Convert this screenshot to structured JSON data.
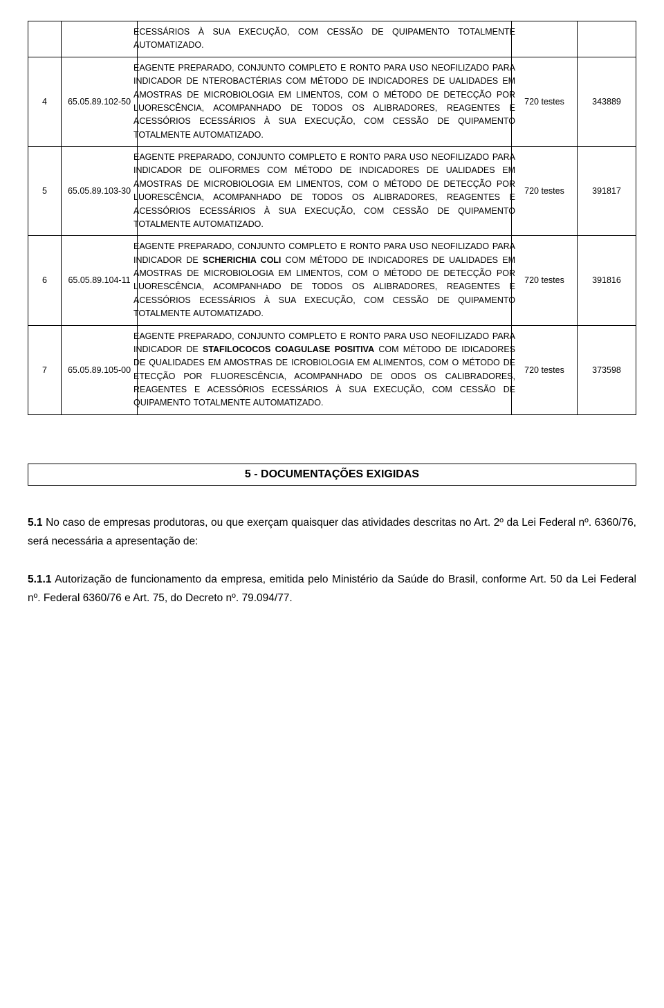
{
  "table": {
    "col4_label": "720 testes",
    "partial_row": {
      "desc": "ECESSÁRIOS À SUA EXECUÇÃO, COM CESSÃO DE QUIPAMENTO TOTALMENTE AUTOMATIZADO."
    },
    "rows": [
      {
        "num": "4",
        "code": "65.05.89.102-50",
        "desc": "EAGENTE PREPARADO, CONJUNTO COMPLETO E RONTO PARA USO NEOFILIZADO PARA INDICADOR DE NTEROBACTÉRIAS COM MÉTODO DE INDICADORES DE UALIDADES EM AMOSTRAS DE MICROBIOLOGIA EM LIMENTOS, COM O MÉTODO DE DETECÇÃO POR LUORESCÊNCIA, ACOMPANHADO DE TODOS OS ALIBRADORES, REAGENTES E ACESSÓRIOS ECESSÁRIOS À SUA EXECUÇÃO, COM CESSÃO DE QUIPAMENTO TOTALMENTE AUTOMATIZADO.",
        "qty": "720 testes",
        "val": "343889"
      },
      {
        "num": "5",
        "code": "65.05.89.103-30",
        "desc": "EAGENTE PREPARADO, CONJUNTO COMPLETO E RONTO PARA USO NEOFILIZADO PARA INDICADOR DE OLIFORMES COM MÉTODO DE INDICADORES DE UALIDADES EM AMOSTRAS DE MICROBIOLOGIA EM LIMENTOS, COM O MÉTODO DE DETECÇÃO POR LUORESCÊNCIA, ACOMPANHADO DE TODOS OS ALIBRADORES, REAGENTES E ACESSÓRIOS ECESSÁRIOS À SUA EXECUÇÃO, COM CESSÃO DE QUIPAMENTO TOTALMENTE AUTOMATIZADO.",
        "qty": "720 testes",
        "val": "391817"
      },
      {
        "num": "6",
        "code": "65.05.89.104-11",
        "desc": "EAGENTE PREPARADO, CONJUNTO COMPLETO E RONTO PARA USO NEOFILIZADO PARA INDICADOR DE SCHERICHIA COLI COM MÉTODO DE INDICADORES DE UALIDADES EM AMOSTRAS DE MICROBIOLOGIA EM LIMENTOS, COM O MÉTODO DE DETECÇÃO POR LUORESCÊNCIA, ACOMPANHADO DE TODOS OS ALIBRADORES, REAGENTES E ACESSÓRIOS ECESSÁRIOS À SUA EXECUÇÃO, COM CESSÃO DE QUIPAMENTO TOTALMENTE AUTOMATIZADO.",
        "bold_segment": "SCHERICHIA COLI",
        "qty": "720 testes",
        "val": "391816"
      },
      {
        "num": "7",
        "code": "65.05.89.105-00",
        "desc": "EAGENTE PREPARADO, CONJUNTO COMPLETO E RONTO PARA USO NEOFILIZADO PARA INDICADOR DE STAFILOCOCOS COAGULASE POSITIVA COM MÉTODO DE IDICADORES DE QUALIDADES EM AMOSTRAS DE ICROBIOLOGIA EM ALIMENTOS, COM O MÉTODO DE ETECÇÃO POR FLUORESCÊNCIA, ACOMPANHADO DE ODOS OS CALIBRADORES, REAGENTES E ACESSÓRIOS ECESSÁRIOS À SUA EXECUÇÃO, COM CESSÃO DE QUIPAMENTO TOTALMENTE AUTOMATIZADO.",
        "bold_segment": "STAFILOCOCOS COAGULASE POSITIVA",
        "qty": "720 testes",
        "val": "373598"
      }
    ]
  },
  "section_title": "5 - DOCUMENTAÇÕES EXIGIDAS",
  "para1_pre": "5.1",
  "para1": " No caso de empresas produtoras, ou que exerçam quaisquer das atividades descritas no Art. 2º da Lei Federal nº. 6360/76, será necessária a apresentação de:",
  "para2_pre": "5.1.1",
  "para2": " Autorização de funcionamento da empresa, emitida pelo Ministério da Saúde do Brasil, conforme Art. 50 da Lei Federal nº. Federal 6360/76 e Art. 75, do Decreto nº. 79.094/77."
}
